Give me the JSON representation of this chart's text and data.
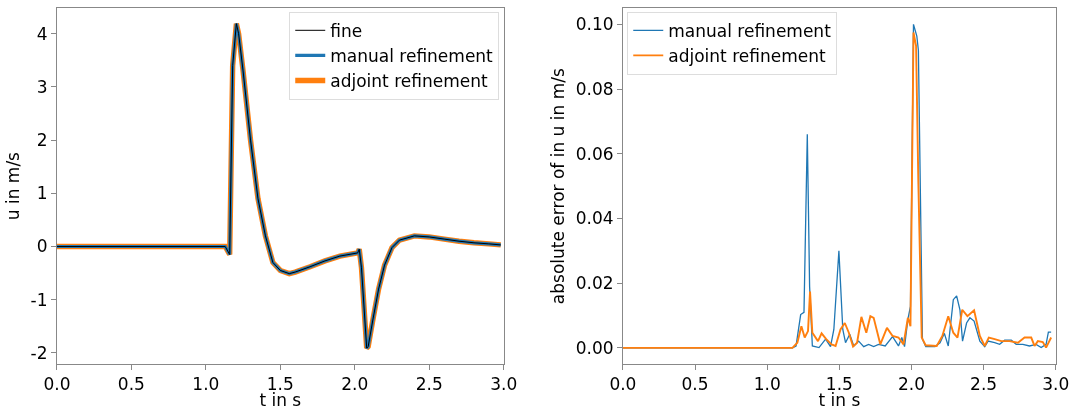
{
  "chart_data": [
    {
      "type": "line",
      "xlabel": "t in s",
      "ylabel": "u in m/s",
      "legend": "top right",
      "xlim": [
        0,
        3.0
      ],
      "ylim": [
        -2.21,
        4.48
      ],
      "xticks": [
        {
          "value": 0,
          "label": "0.0"
        },
        {
          "value": 0.5,
          "label": "0.5"
        },
        {
          "value": 1,
          "label": "1.0"
        },
        {
          "value": 1.5,
          "label": "1.5"
        },
        {
          "value": 2,
          "label": "2.0"
        },
        {
          "value": 2.5,
          "label": "2.5"
        },
        {
          "value": 3,
          "label": "3.0"
        }
      ],
      "yticks": [
        -2,
        -1,
        0,
        1,
        2,
        3,
        4
      ],
      "x": [
        0,
        1.13,
        1.16,
        1.18,
        1.205,
        1.22,
        1.25,
        1.3,
        1.35,
        1.4,
        1.45,
        1.5,
        1.56,
        1.6,
        1.7,
        1.8,
        1.9,
        2.02,
        2.03,
        2.045,
        2.08,
        2.09,
        2.12,
        2.16,
        2.2,
        2.25,
        2.3,
        2.4,
        2.5,
        2.6,
        2.7,
        2.8,
        2.9,
        2.98
      ],
      "series": [
        {
          "name": "fine",
          "color": "#000000",
          "values": [
            0,
            0,
            -0.15,
            3.4,
            4.19,
            4.0,
            3.3,
            2.0,
            0.9,
            0.2,
            -0.3,
            -0.45,
            -0.51,
            -0.48,
            -0.38,
            -0.27,
            -0.18,
            -0.12,
            -0.05,
            -0.4,
            -1.91,
            -1.88,
            -1.4,
            -0.8,
            -0.35,
            -0.02,
            0.12,
            0.2,
            0.18,
            0.14,
            0.1,
            0.07,
            0.05,
            0.03
          ]
        },
        {
          "name": "manual refinement",
          "color": "#1f77b4",
          "values": [
            0,
            0,
            -0.15,
            3.4,
            4.19,
            4.0,
            3.3,
            2.0,
            0.9,
            0.2,
            -0.3,
            -0.45,
            -0.51,
            -0.48,
            -0.38,
            -0.27,
            -0.18,
            -0.12,
            -0.05,
            -0.4,
            -1.91,
            -1.88,
            -1.4,
            -0.8,
            -0.35,
            -0.02,
            0.12,
            0.2,
            0.18,
            0.14,
            0.1,
            0.07,
            0.05,
            0.03
          ]
        },
        {
          "name": "adjoint refinement",
          "color": "#ff7f0e",
          "values": [
            0,
            0,
            -0.15,
            3.4,
            4.19,
            4.0,
            3.3,
            2.0,
            0.9,
            0.2,
            -0.3,
            -0.45,
            -0.51,
            -0.48,
            -0.38,
            -0.27,
            -0.18,
            -0.12,
            -0.05,
            -0.4,
            -1.91,
            -1.88,
            -1.4,
            -0.8,
            -0.35,
            -0.02,
            0.12,
            0.2,
            0.18,
            0.14,
            0.1,
            0.07,
            0.05,
            0.03
          ]
        }
      ]
    },
    {
      "type": "line",
      "xlabel": "t in s",
      "ylabel": "absolute error of in u in m/s",
      "legend": "top left",
      "xlim": [
        0,
        3.0
      ],
      "ylim": [
        -0.005,
        0.105
      ],
      "xticks": [
        {
          "value": 0,
          "label": "0.0"
        },
        {
          "value": 0.5,
          "label": "0.5"
        },
        {
          "value": 1,
          "label": "1.0"
        },
        {
          "value": 1.5,
          "label": "1.5"
        },
        {
          "value": 2,
          "label": "2.0"
        },
        {
          "value": 2.5,
          "label": "2.5"
        },
        {
          "value": 3,
          "label": "3.0"
        }
      ],
      "yticks": [
        {
          "value": 0,
          "label": "0.00"
        },
        {
          "value": 0.02,
          "label": "0.02"
        },
        {
          "value": 0.04,
          "label": "0.04"
        },
        {
          "value": 0.06,
          "label": "0.06"
        },
        {
          "value": 0.08,
          "label": "0.08"
        },
        {
          "value": 0.1,
          "label": "0.10"
        }
      ],
      "series": [
        {
          "name": "manual refinement",
          "color": "#1f77b4",
          "x": [
            0,
            1.175,
            1.2,
            1.232,
            1.255,
            1.278,
            1.294,
            1.313,
            1.359,
            1.405,
            1.439,
            1.462,
            1.497,
            1.524,
            1.543,
            1.572,
            1.6,
            1.634,
            1.669,
            1.703,
            1.738,
            1.772,
            1.818,
            1.869,
            1.91,
            1.933,
            1.952,
            1.975,
            1.993,
            2.014,
            2.037,
            2.048,
            2.076,
            2.099,
            2.163,
            2.198,
            2.228,
            2.255,
            2.29,
            2.313,
            2.336,
            2.354,
            2.382,
            2.405,
            2.434,
            2.474,
            2.508,
            2.531,
            2.577,
            2.611,
            2.646,
            2.692,
            2.726,
            2.772,
            2.818,
            2.864,
            2.899,
            2.933,
            2.949,
            2.968
          ],
          "values": [
            0,
            0,
            0.0006,
            0.0103,
            0.011,
            0.066,
            0.019,
            0.0006,
            0.0001,
            0.0027,
            0.0004,
            0.0057,
            0.03,
            0.0057,
            0.0016,
            0.0042,
            0.0006,
            0.0021,
            0.0004,
            0.0011,
            0.0004,
            0.0011,
            0.0006,
            0.0035,
            0.0006,
            0.0032,
            0.0004,
            0.0088,
            0.0128,
            0.1,
            0.0964,
            0.092,
            0.0027,
            0.0004,
            0.0004,
            0.0016,
            0.0045,
            0.0006,
            0.0149,
            0.0161,
            0.0118,
            0.0021,
            0.0077,
            0.0093,
            0.0083,
            0.0021,
            0.0004,
            0.0021,
            0.0016,
            0.0011,
            0.0024,
            0.0024,
            0.0011,
            0.0011,
            0.0006,
            0.0011,
            0.0001,
            0.0011,
            0.0049,
            0.0049
          ]
        },
        {
          "name": "adjoint refinement",
          "color": "#ff7f0e",
          "x": [
            0,
            1.175,
            1.209,
            1.237,
            1.26,
            1.283,
            1.297,
            1.313,
            1.352,
            1.377,
            1.409,
            1.446,
            1.474,
            1.508,
            1.538,
            1.566,
            1.595,
            1.623,
            1.653,
            1.687,
            1.715,
            1.738,
            1.784,
            1.83,
            1.869,
            1.91,
            1.945,
            1.975,
            1.993,
            2.014,
            2.032,
            2.048,
            2.071,
            2.099,
            2.175,
            2.214,
            2.255,
            2.29,
            2.319,
            2.352,
            2.388,
            2.434,
            2.474,
            2.508,
            2.536,
            2.577,
            2.623,
            2.68,
            2.738,
            2.784,
            2.83,
            2.853,
            2.876,
            2.91,
            2.933,
            2.968
          ],
          "values": [
            0,
            0,
            0.0016,
            0.0067,
            0.0032,
            0.0052,
            0.0174,
            0.0047,
            0.0021,
            0.0045,
            0.0027,
            0.0011,
            0.0006,
            0.0057,
            0.0077,
            0.0047,
            0.0004,
            0.0016,
            0.0096,
            0.0047,
            0.0098,
            0.0093,
            0.0011,
            0.0062,
            0.0037,
            0.0032,
            0.0011,
            0.0093,
            0.0067,
            0.0975,
            0.0934,
            0.0506,
            0.0032,
            0.0008,
            0.0006,
            0.0037,
            0.0098,
            0.0047,
            0.0032,
            0.0118,
            0.0098,
            0.0116,
            0.0037,
            0.0006,
            0.0032,
            0.0027,
            0.0021,
            0.0021,
            0.0016,
            0.0032,
            0.0032,
            0.0006,
            0.0021,
            0.0018,
            0.0001,
            0.0032
          ]
        }
      ]
    }
  ]
}
